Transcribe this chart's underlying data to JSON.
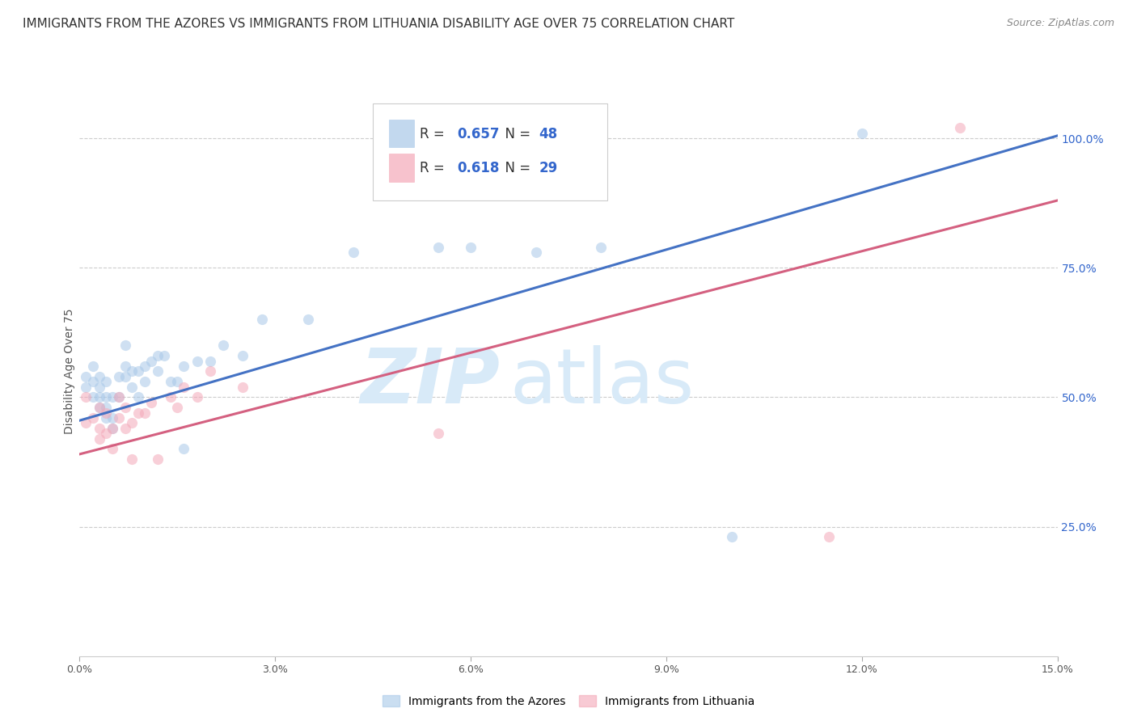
{
  "title": "IMMIGRANTS FROM THE AZORES VS IMMIGRANTS FROM LITHUANIA DISABILITY AGE OVER 75 CORRELATION CHART",
  "source": "Source: ZipAtlas.com",
  "ylabel": "Disability Age Over 75",
  "xlim": [
    0.0,
    0.15
  ],
  "ylim": [
    0.0,
    1.1
  ],
  "right_yticks": [
    0.25,
    0.5,
    0.75,
    1.0
  ],
  "right_yticklabels": [
    "25.0%",
    "50.0%",
    "75.0%",
    "100.0%"
  ],
  "xticks": [
    0.0,
    0.03,
    0.06,
    0.09,
    0.12,
    0.15
  ],
  "xticklabels": [
    "0.0%",
    "3.0%",
    "6.0%",
    "9.0%",
    "12.0%",
    "15.0%"
  ],
  "blue_R": "0.657",
  "blue_N": "48",
  "pink_R": "0.618",
  "pink_N": "29",
  "blue_label": "Immigrants from the Azores",
  "pink_label": "Immigrants from Lithuania",
  "blue_color": "#a8c8e8",
  "blue_line_color": "#4472c4",
  "pink_color": "#f4a8b8",
  "pink_line_color": "#d46080",
  "watermark_zip": "ZIP",
  "watermark_atlas": "atlas",
  "watermark_color": "#d8eaf8",
  "blue_points_x": [
    0.001,
    0.001,
    0.002,
    0.002,
    0.002,
    0.003,
    0.003,
    0.003,
    0.003,
    0.004,
    0.004,
    0.004,
    0.004,
    0.005,
    0.005,
    0.005,
    0.006,
    0.006,
    0.007,
    0.007,
    0.007,
    0.008,
    0.008,
    0.009,
    0.009,
    0.01,
    0.01,
    0.011,
    0.012,
    0.012,
    0.013,
    0.014,
    0.015,
    0.016,
    0.016,
    0.018,
    0.02,
    0.022,
    0.025,
    0.028,
    0.035,
    0.042,
    0.055,
    0.06,
    0.07,
    0.08,
    0.1,
    0.12
  ],
  "blue_points_y": [
    0.52,
    0.54,
    0.5,
    0.53,
    0.56,
    0.48,
    0.5,
    0.52,
    0.54,
    0.46,
    0.48,
    0.5,
    0.53,
    0.44,
    0.46,
    0.5,
    0.5,
    0.54,
    0.54,
    0.56,
    0.6,
    0.52,
    0.55,
    0.5,
    0.55,
    0.53,
    0.56,
    0.57,
    0.55,
    0.58,
    0.58,
    0.53,
    0.53,
    0.56,
    0.4,
    0.57,
    0.57,
    0.6,
    0.58,
    0.65,
    0.65,
    0.78,
    0.79,
    0.79,
    0.78,
    0.79,
    0.23,
    1.01
  ],
  "pink_points_x": [
    0.001,
    0.001,
    0.002,
    0.003,
    0.003,
    0.003,
    0.004,
    0.004,
    0.005,
    0.005,
    0.006,
    0.006,
    0.007,
    0.007,
    0.008,
    0.008,
    0.009,
    0.01,
    0.011,
    0.012,
    0.014,
    0.015,
    0.016,
    0.018,
    0.02,
    0.025,
    0.055,
    0.115,
    0.135
  ],
  "pink_points_y": [
    0.45,
    0.5,
    0.46,
    0.42,
    0.44,
    0.48,
    0.43,
    0.47,
    0.4,
    0.44,
    0.46,
    0.5,
    0.44,
    0.48,
    0.45,
    0.38,
    0.47,
    0.47,
    0.49,
    0.38,
    0.5,
    0.48,
    0.52,
    0.5,
    0.55,
    0.52,
    0.43,
    0.23,
    1.02
  ],
  "blue_line_x0": 0.0,
  "blue_line_x1": 0.15,
  "blue_line_y0": 0.455,
  "blue_line_y1": 1.005,
  "pink_line_x0": 0.0,
  "pink_line_x1": 0.15,
  "pink_line_y0": 0.39,
  "pink_line_y1": 0.88,
  "title_fontsize": 11,
  "axis_label_fontsize": 10,
  "tick_fontsize": 9,
  "legend_fontsize": 12,
  "background_color": "#ffffff",
  "grid_color": "#cccccc",
  "legend_text_color": "#333333",
  "legend_value_color": "#3366cc"
}
